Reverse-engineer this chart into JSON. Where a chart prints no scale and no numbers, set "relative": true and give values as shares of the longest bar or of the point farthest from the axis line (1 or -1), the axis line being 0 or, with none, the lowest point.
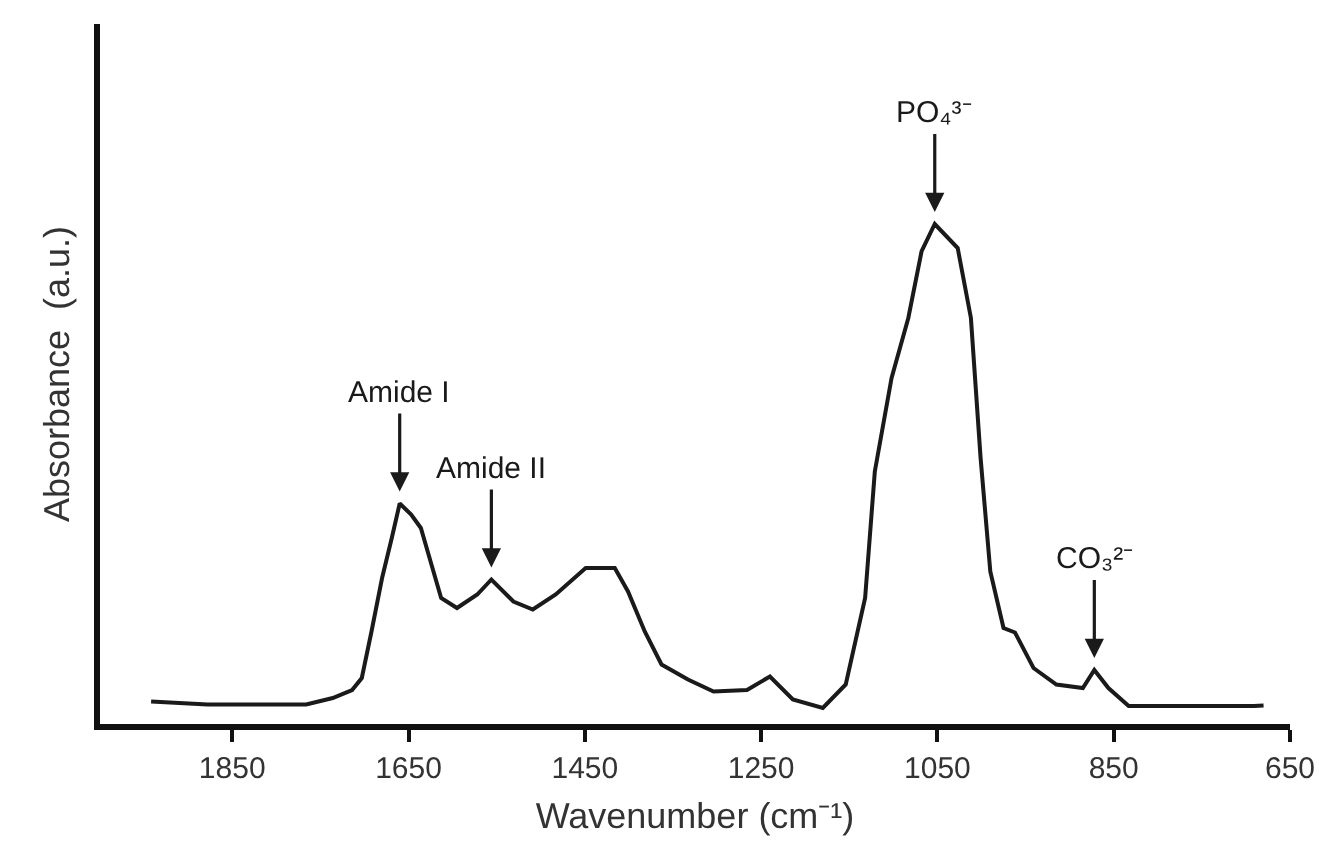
{
  "chart_data": {
    "type": "line",
    "relative": true,
    "xlabel": "Wavenumber (cm⁻¹)",
    "ylabel": "Absorbance  (a.u.)",
    "xlim": [
      2000,
      650
    ],
    "xticks": [
      1850,
      1650,
      1450,
      1250,
      1050,
      850,
      650
    ],
    "x": [
      1942,
      1878,
      1766,
      1736,
      1714,
      1703,
      1692,
      1680,
      1669,
      1660,
      1647,
      1636,
      1624,
      1613,
      1595,
      1572,
      1556,
      1531,
      1509,
      1483,
      1449,
      1416,
      1401,
      1382,
      1363,
      1333,
      1304,
      1266,
      1240,
      1214,
      1180,
      1154,
      1132,
      1121,
      1102,
      1083,
      1068,
      1053,
      1027,
      1012,
      1001,
      990,
      975,
      962,
      941,
      915,
      885,
      872,
      856,
      833,
      691,
      680
    ],
    "series": [
      {
        "color": "#1a1a1a",
        "values": [
          0.045,
          0.039,
          0.039,
          0.052,
          0.068,
          0.092,
          0.185,
          0.292,
          0.372,
          0.441,
          0.419,
          0.392,
          0.319,
          0.252,
          0.232,
          0.259,
          0.289,
          0.245,
          0.229,
          0.259,
          0.312,
          0.312,
          0.265,
          0.185,
          0.119,
          0.089,
          0.065,
          0.068,
          0.095,
          0.049,
          0.032,
          0.079,
          0.252,
          0.505,
          0.692,
          0.812,
          0.945,
          1.0,
          0.952,
          0.812,
          0.532,
          0.305,
          0.192,
          0.183,
          0.112,
          0.079,
          0.072,
          0.108,
          0.072,
          0.036,
          0.036,
          0.037
        ]
      }
    ],
    "annotations": [
      {
        "text": "Amide I",
        "x": 1660,
        "y": 0.441
      },
      {
        "text": "Amide II",
        "x": 1556,
        "y": 0.289
      },
      {
        "text": "PO₄³⁻",
        "x": 1053,
        "y": 1.0
      },
      {
        "text": "CO₃²⁻",
        "x": 872,
        "y": 0.108
      }
    ],
    "marker": "none",
    "line_style": "solid"
  }
}
